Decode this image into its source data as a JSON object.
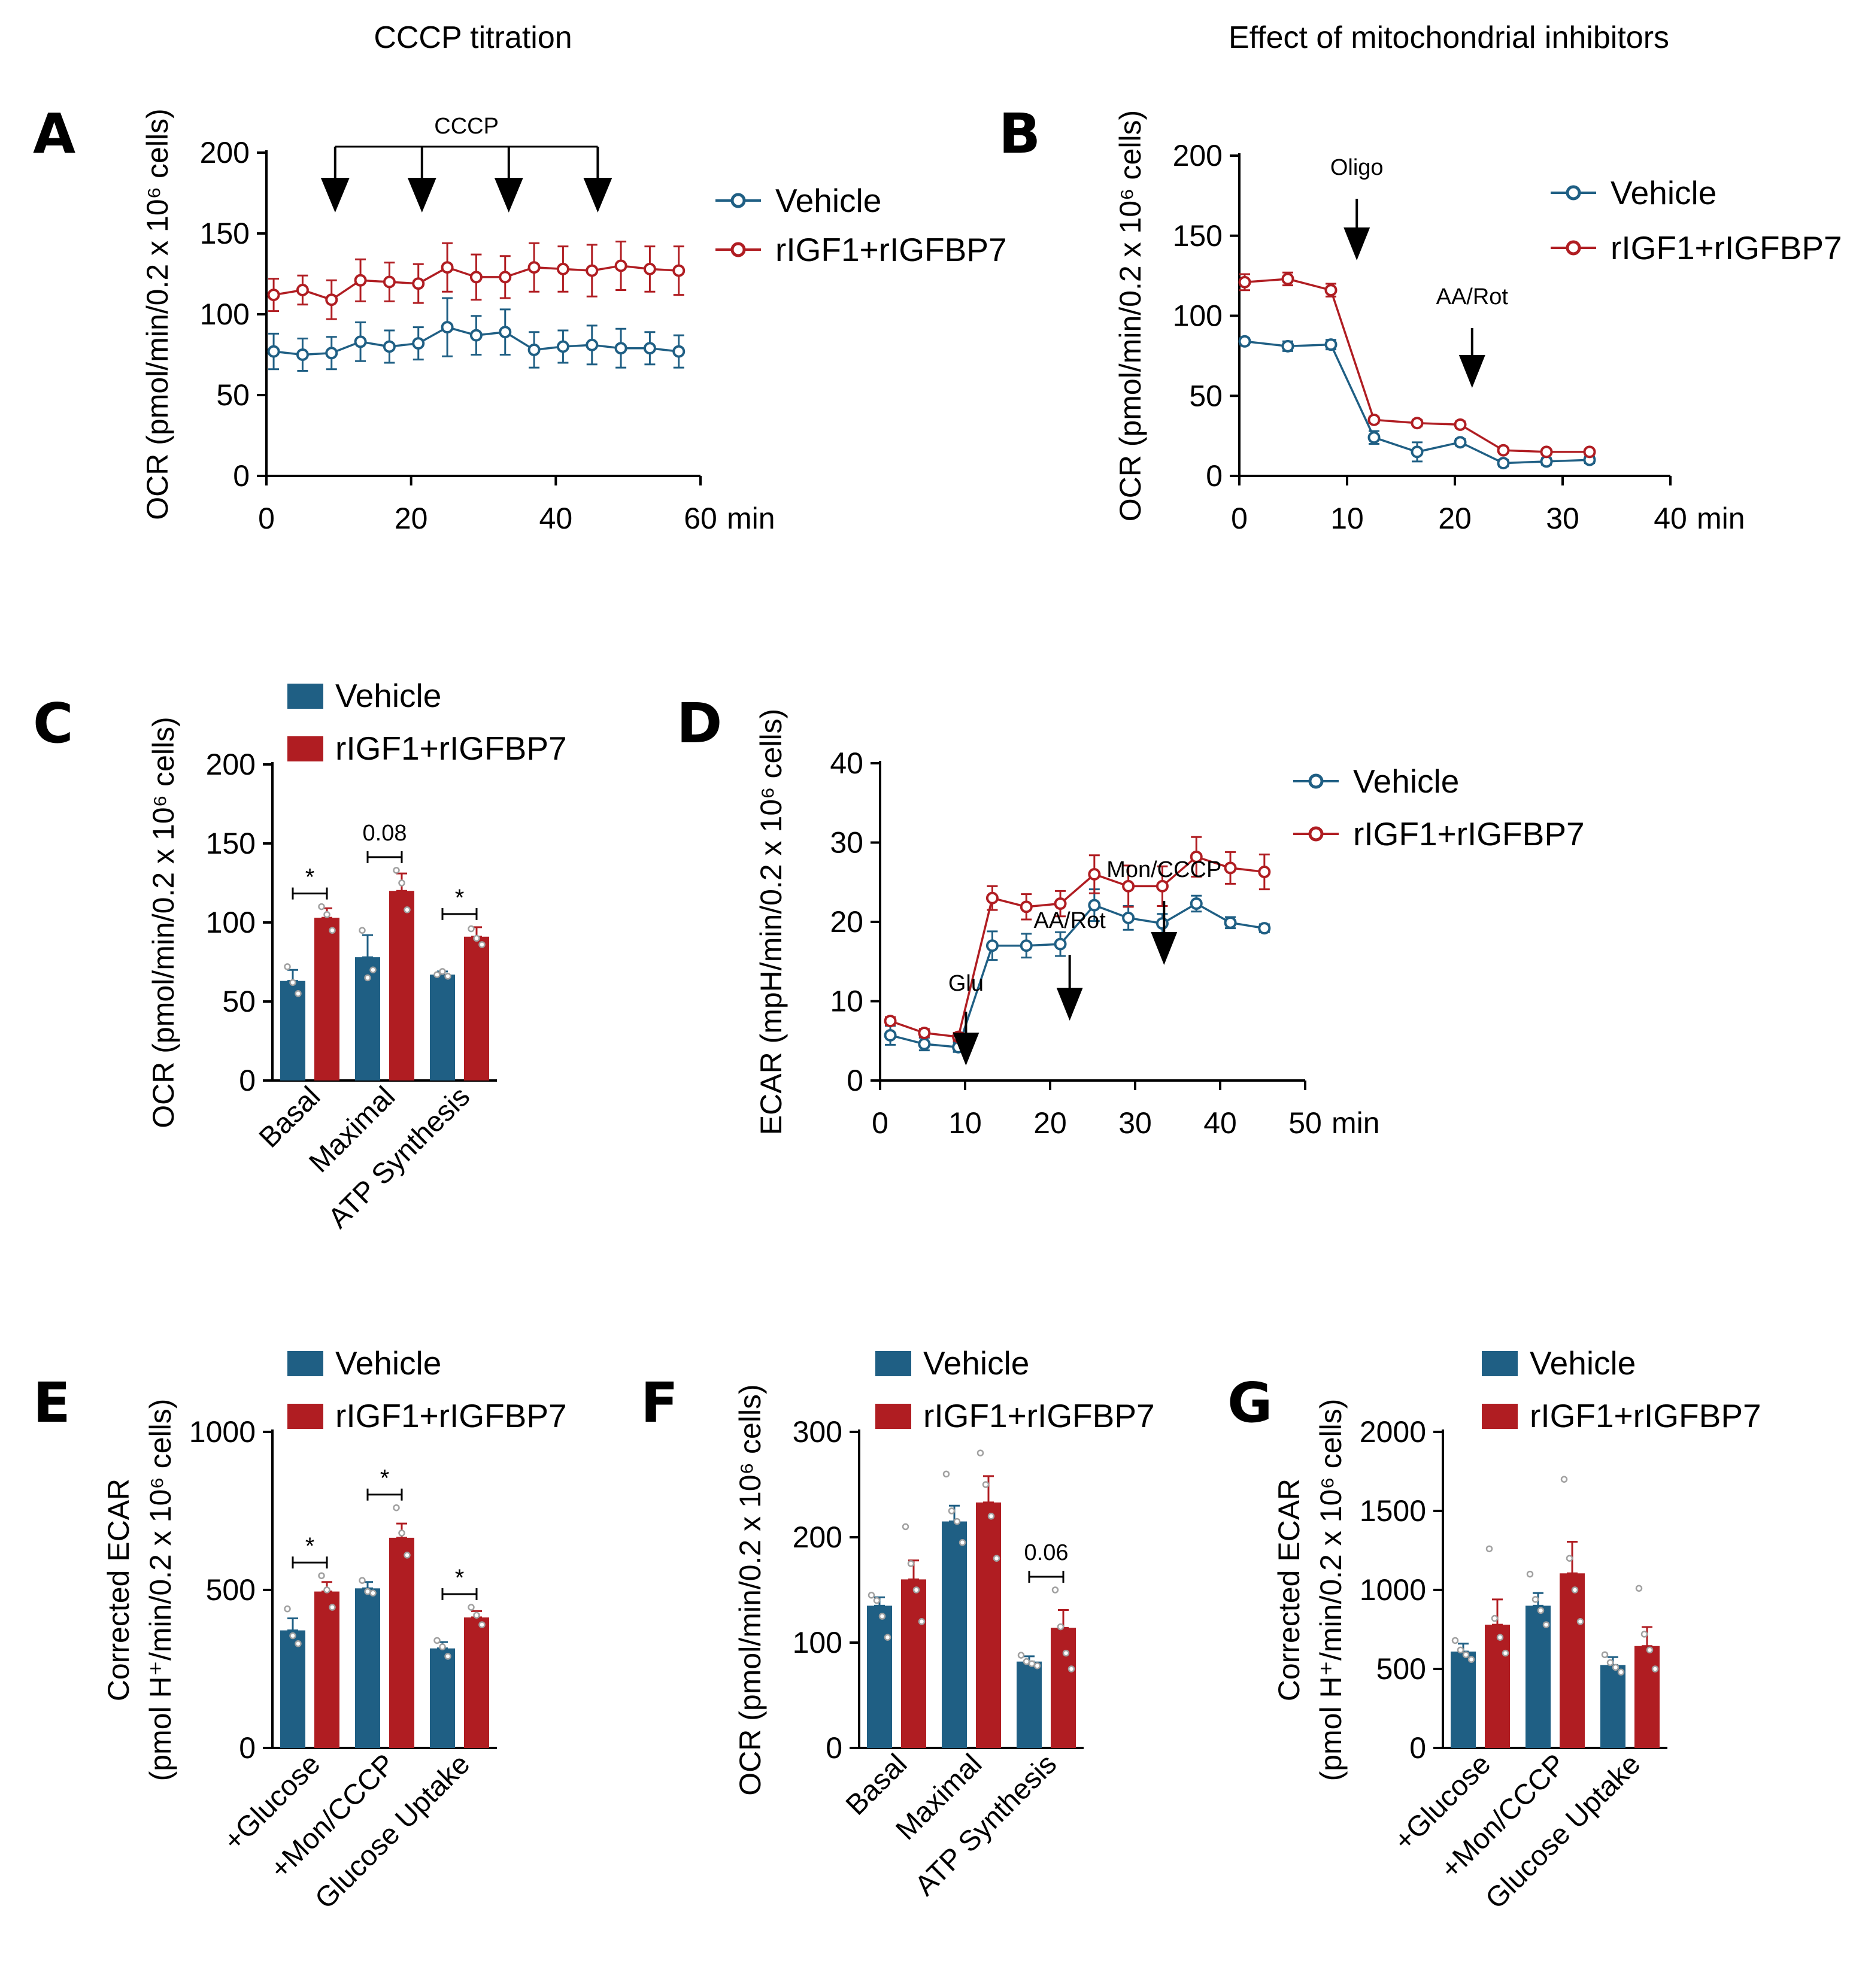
{
  "colors": {
    "vehicle": "#1f5f84",
    "treated": "#b01d22",
    "point": "#a0a0a0"
  },
  "headers": {
    "left": "CCCP titration",
    "right": "Effect of mitochondrial inhibitors"
  },
  "chart_data": [
    {
      "panel": "A",
      "type": "line",
      "ylabel": "OCR (pmol/min/0.2 x 10⁶ cells)",
      "xunit": "min",
      "xticks": [
        0,
        20,
        40,
        60
      ],
      "yticks": [
        0,
        50,
        100,
        150,
        200
      ],
      "xlim": [
        0,
        60
      ],
      "ylim": [
        0,
        200
      ],
      "annotations": [
        {
          "text": "CCCP",
          "at_x": [
            9.5,
            21.5,
            33.5,
            45.8
          ],
          "bracket": true
        }
      ],
      "legend": [
        "Vehicle",
        "rIGF1+rIGFBP7"
      ],
      "x": [
        1,
        5,
        9,
        13,
        17,
        21,
        25,
        29,
        33,
        37,
        41,
        45,
        49,
        53,
        57
      ],
      "series": [
        {
          "name": "Vehicle",
          "values": [
            77,
            75,
            76,
            83,
            80,
            82,
            92,
            87,
            89,
            78,
            80,
            81,
            79,
            79,
            77
          ],
          "errors": [
            11,
            10,
            10,
            12,
            10,
            10,
            18,
            12,
            14,
            11,
            10,
            12,
            12,
            10,
            10
          ]
        },
        {
          "name": "rIGF1+rIGFBP7",
          "values": [
            112,
            115,
            109,
            121,
            120,
            119,
            129,
            123,
            123,
            129,
            128,
            127,
            130,
            128,
            127
          ],
          "errors": [
            10,
            9,
            12,
            13,
            12,
            12,
            15,
            14,
            13,
            15,
            14,
            16,
            15,
            14,
            15
          ]
        }
      ]
    },
    {
      "panel": "B",
      "type": "line",
      "ylabel": "OCR (pmol/min/0.2 x 10⁶ cells)",
      "xunit": "min",
      "xticks": [
        0,
        10,
        20,
        30,
        40
      ],
      "yticks": [
        0,
        50,
        100,
        150,
        200
      ],
      "xlim": [
        0,
        40
      ],
      "ylim": [
        0,
        200
      ],
      "annotations": [
        {
          "text": "Oligo",
          "at_x": 10.9
        },
        {
          "text": "AA/Rot",
          "at_x": 21.6
        }
      ],
      "legend": [
        "Vehicle",
        "rIGF1+rIGFBP7"
      ],
      "x": [
        0.5,
        4.5,
        8.5,
        12.5,
        16.5,
        20.5,
        24.5,
        28.5,
        32.5
      ],
      "series": [
        {
          "name": "Vehicle",
          "values": [
            84,
            81,
            82,
            24,
            15,
            21,
            8,
            9,
            10
          ],
          "errors": [
            2,
            3,
            3,
            4,
            6,
            2,
            2,
            2,
            2
          ]
        },
        {
          "name": "rIGF1+rIGFBP7",
          "values": [
            121,
            123,
            116,
            35,
            33,
            32,
            16,
            15,
            15
          ],
          "errors": [
            5,
            4,
            4,
            2,
            2,
            2,
            1,
            1,
            1
          ]
        }
      ]
    },
    {
      "panel": "C",
      "type": "bar",
      "ylabel": "OCR (pmol/min/0.2 x 10⁶ cells)",
      "categories": [
        "Basal",
        "Maximal",
        "ATP Synthesis"
      ],
      "yticks": [
        0,
        50,
        100,
        150,
        200
      ],
      "ylim": [
        0,
        200
      ],
      "legend": [
        "Vehicle",
        "rIGF1+rIGFBP7"
      ],
      "series": [
        {
          "name": "Vehicle",
          "values": [
            63,
            78,
            67
          ],
          "errors": [
            7,
            14,
            2
          ],
          "points": [
            [
              72,
              62,
              55
            ],
            [
              95,
              65,
              70
            ],
            [
              67,
              69,
              66
            ]
          ]
        },
        {
          "name": "rIGF1+rIGFBP7",
          "values": [
            103,
            120,
            91
          ],
          "errors": [
            6,
            11,
            6
          ],
          "points": [
            [
              110,
              105,
              95
            ],
            [
              133,
              125,
              108
            ],
            [
              96,
              90,
              86
            ]
          ]
        }
      ],
      "significance": [
        {
          "category": 0,
          "text": "*"
        },
        {
          "category": 1,
          "text": "0.08"
        },
        {
          "category": 2,
          "text": "*"
        }
      ]
    },
    {
      "panel": "D",
      "type": "line",
      "ylabel": "ECAR (mpH/min/0.2 x 10⁶ cells)",
      "xunit": "min",
      "xticks": [
        0,
        10,
        20,
        30,
        40,
        50
      ],
      "yticks": [
        0,
        10,
        20,
        30,
        40
      ],
      "xlim": [
        0,
        50
      ],
      "ylim": [
        0,
        40
      ],
      "annotations": [
        {
          "text": "Glu",
          "at_x": 10.1
        },
        {
          "text": "AA/Rot",
          "at_x": 22.3
        },
        {
          "text": "Mon/CCCP",
          "at_x": 33.4
        }
      ],
      "legend": [
        "Vehicle",
        "rIGF1+rIGFBP7"
      ],
      "x": [
        1.2,
        5.2,
        9.2,
        13.2,
        17.2,
        21.2,
        25.2,
        29.2,
        33.2,
        37.2,
        41.2,
        45.2
      ],
      "series": [
        {
          "name": "Vehicle",
          "values": [
            5.7,
            4.6,
            4.2,
            17.0,
            17.0,
            17.2,
            22.1,
            20.5,
            19.8,
            22.3,
            19.9,
            19.2
          ],
          "errors": [
            1.2,
            0.8,
            0.6,
            1.8,
            1.5,
            1.5,
            2.0,
            1.5,
            1.2,
            1.0,
            0.7,
            0.5
          ]
        },
        {
          "name": "rIGF1+rIGFBP7",
          "values": [
            7.5,
            6.0,
            5.5,
            23.0,
            21.9,
            22.3,
            26.0,
            24.5,
            24.5,
            28.2,
            26.8,
            26.3
          ],
          "errors": [
            0.5,
            0.5,
            0.5,
            1.5,
            1.6,
            1.6,
            2.4,
            2.6,
            2.5,
            2.5,
            2.0,
            2.2
          ]
        }
      ]
    },
    {
      "panel": "E",
      "type": "bar",
      "ylabel_lines": [
        "Corrected ECAR",
        "(pmol H⁺/min/0.2 x 10⁶ cells)"
      ],
      "categories": [
        "+Glucose",
        "+Mon/CCCP",
        "Glucose Uptake"
      ],
      "yticks": [
        0,
        500,
        1000
      ],
      "ylim": [
        0,
        1000
      ],
      "legend": [
        "Vehicle",
        "rIGF1+rIGFBP7"
      ],
      "series": [
        {
          "name": "Vehicle",
          "values": [
            372,
            505,
            315
          ],
          "errors": [
            38,
            20,
            20
          ],
          "points": [
            [
              440,
              355,
              330
            ],
            [
              530,
              495,
              490
            ],
            [
              340,
              320,
              290
            ]
          ]
        },
        {
          "name": "rIGF1+rIGFBP7",
          "values": [
            495,
            665,
            413
          ],
          "errors": [
            30,
            45,
            20
          ],
          "points": [
            [
              545,
              500,
              445
            ],
            [
              760,
              680,
              610
            ],
            [
              445,
              420,
              390
            ]
          ]
        }
      ],
      "significance": [
        {
          "category": 0,
          "text": "*"
        },
        {
          "category": 1,
          "text": "*"
        },
        {
          "category": 2,
          "text": "*"
        }
      ]
    },
    {
      "panel": "F",
      "type": "bar",
      "ylabel": "OCR (pmol/min/0.2 x 10⁶ cells)",
      "categories": [
        "Basal",
        "Maximal",
        "ATP Synthesis"
      ],
      "yticks": [
        0,
        100,
        200,
        300
      ],
      "ylim": [
        0,
        300
      ],
      "legend": [
        "Vehicle",
        "rIGF1+rIGFBP7"
      ],
      "series": [
        {
          "name": "Vehicle",
          "values": [
            135,
            215,
            82
          ],
          "errors": [
            8,
            15,
            5
          ],
          "points": [
            [
              145,
              140,
              125,
              105
            ],
            [
              260,
              225,
              215,
              195
            ],
            [
              88,
              82,
              80,
              78
            ]
          ]
        },
        {
          "name": "rIGF1+rIGFBP7",
          "values": [
            160,
            233,
            114
          ],
          "errors": [
            18,
            25,
            17
          ],
          "points": [
            [
              210,
              175,
              150,
              120
            ],
            [
              280,
              250,
              220,
              180
            ],
            [
              150,
              115,
              90,
              75
            ]
          ]
        }
      ],
      "significance": [
        {
          "category": 2,
          "text": "0.06"
        }
      ]
    },
    {
      "panel": "G",
      "type": "bar",
      "ylabel_lines": [
        "Corrected ECAR",
        "(pmol H⁺/min/0.2 x 10⁶ cells)"
      ],
      "categories": [
        "+Glucose",
        "+Mon/CCCP",
        "Glucose Uptake"
      ],
      "yticks": [
        0,
        500,
        1000,
        1500,
        2000
      ],
      "ylim": [
        0,
        2000
      ],
      "legend": [
        "Vehicle",
        "rIGF1+rIGFBP7"
      ],
      "series": [
        {
          "name": "Vehicle",
          "values": [
            610,
            900,
            525
          ],
          "errors": [
            50,
            80,
            50
          ],
          "points": [
            [
              680,
              620,
              590,
              560
            ],
            [
              1100,
              940,
              870,
              780
            ],
            [
              590,
              540,
              510,
              480
            ]
          ]
        },
        {
          "name": "rIGF1+rIGFBP7",
          "values": [
            780,
            1105,
            645
          ],
          "errors": [
            160,
            200,
            120
          ],
          "points": [
            [
              1260,
              820,
              700,
              600
            ],
            [
              1700,
              1200,
              1000,
              800
            ],
            [
              1010,
              720,
              620,
              500
            ]
          ]
        }
      ]
    }
  ]
}
